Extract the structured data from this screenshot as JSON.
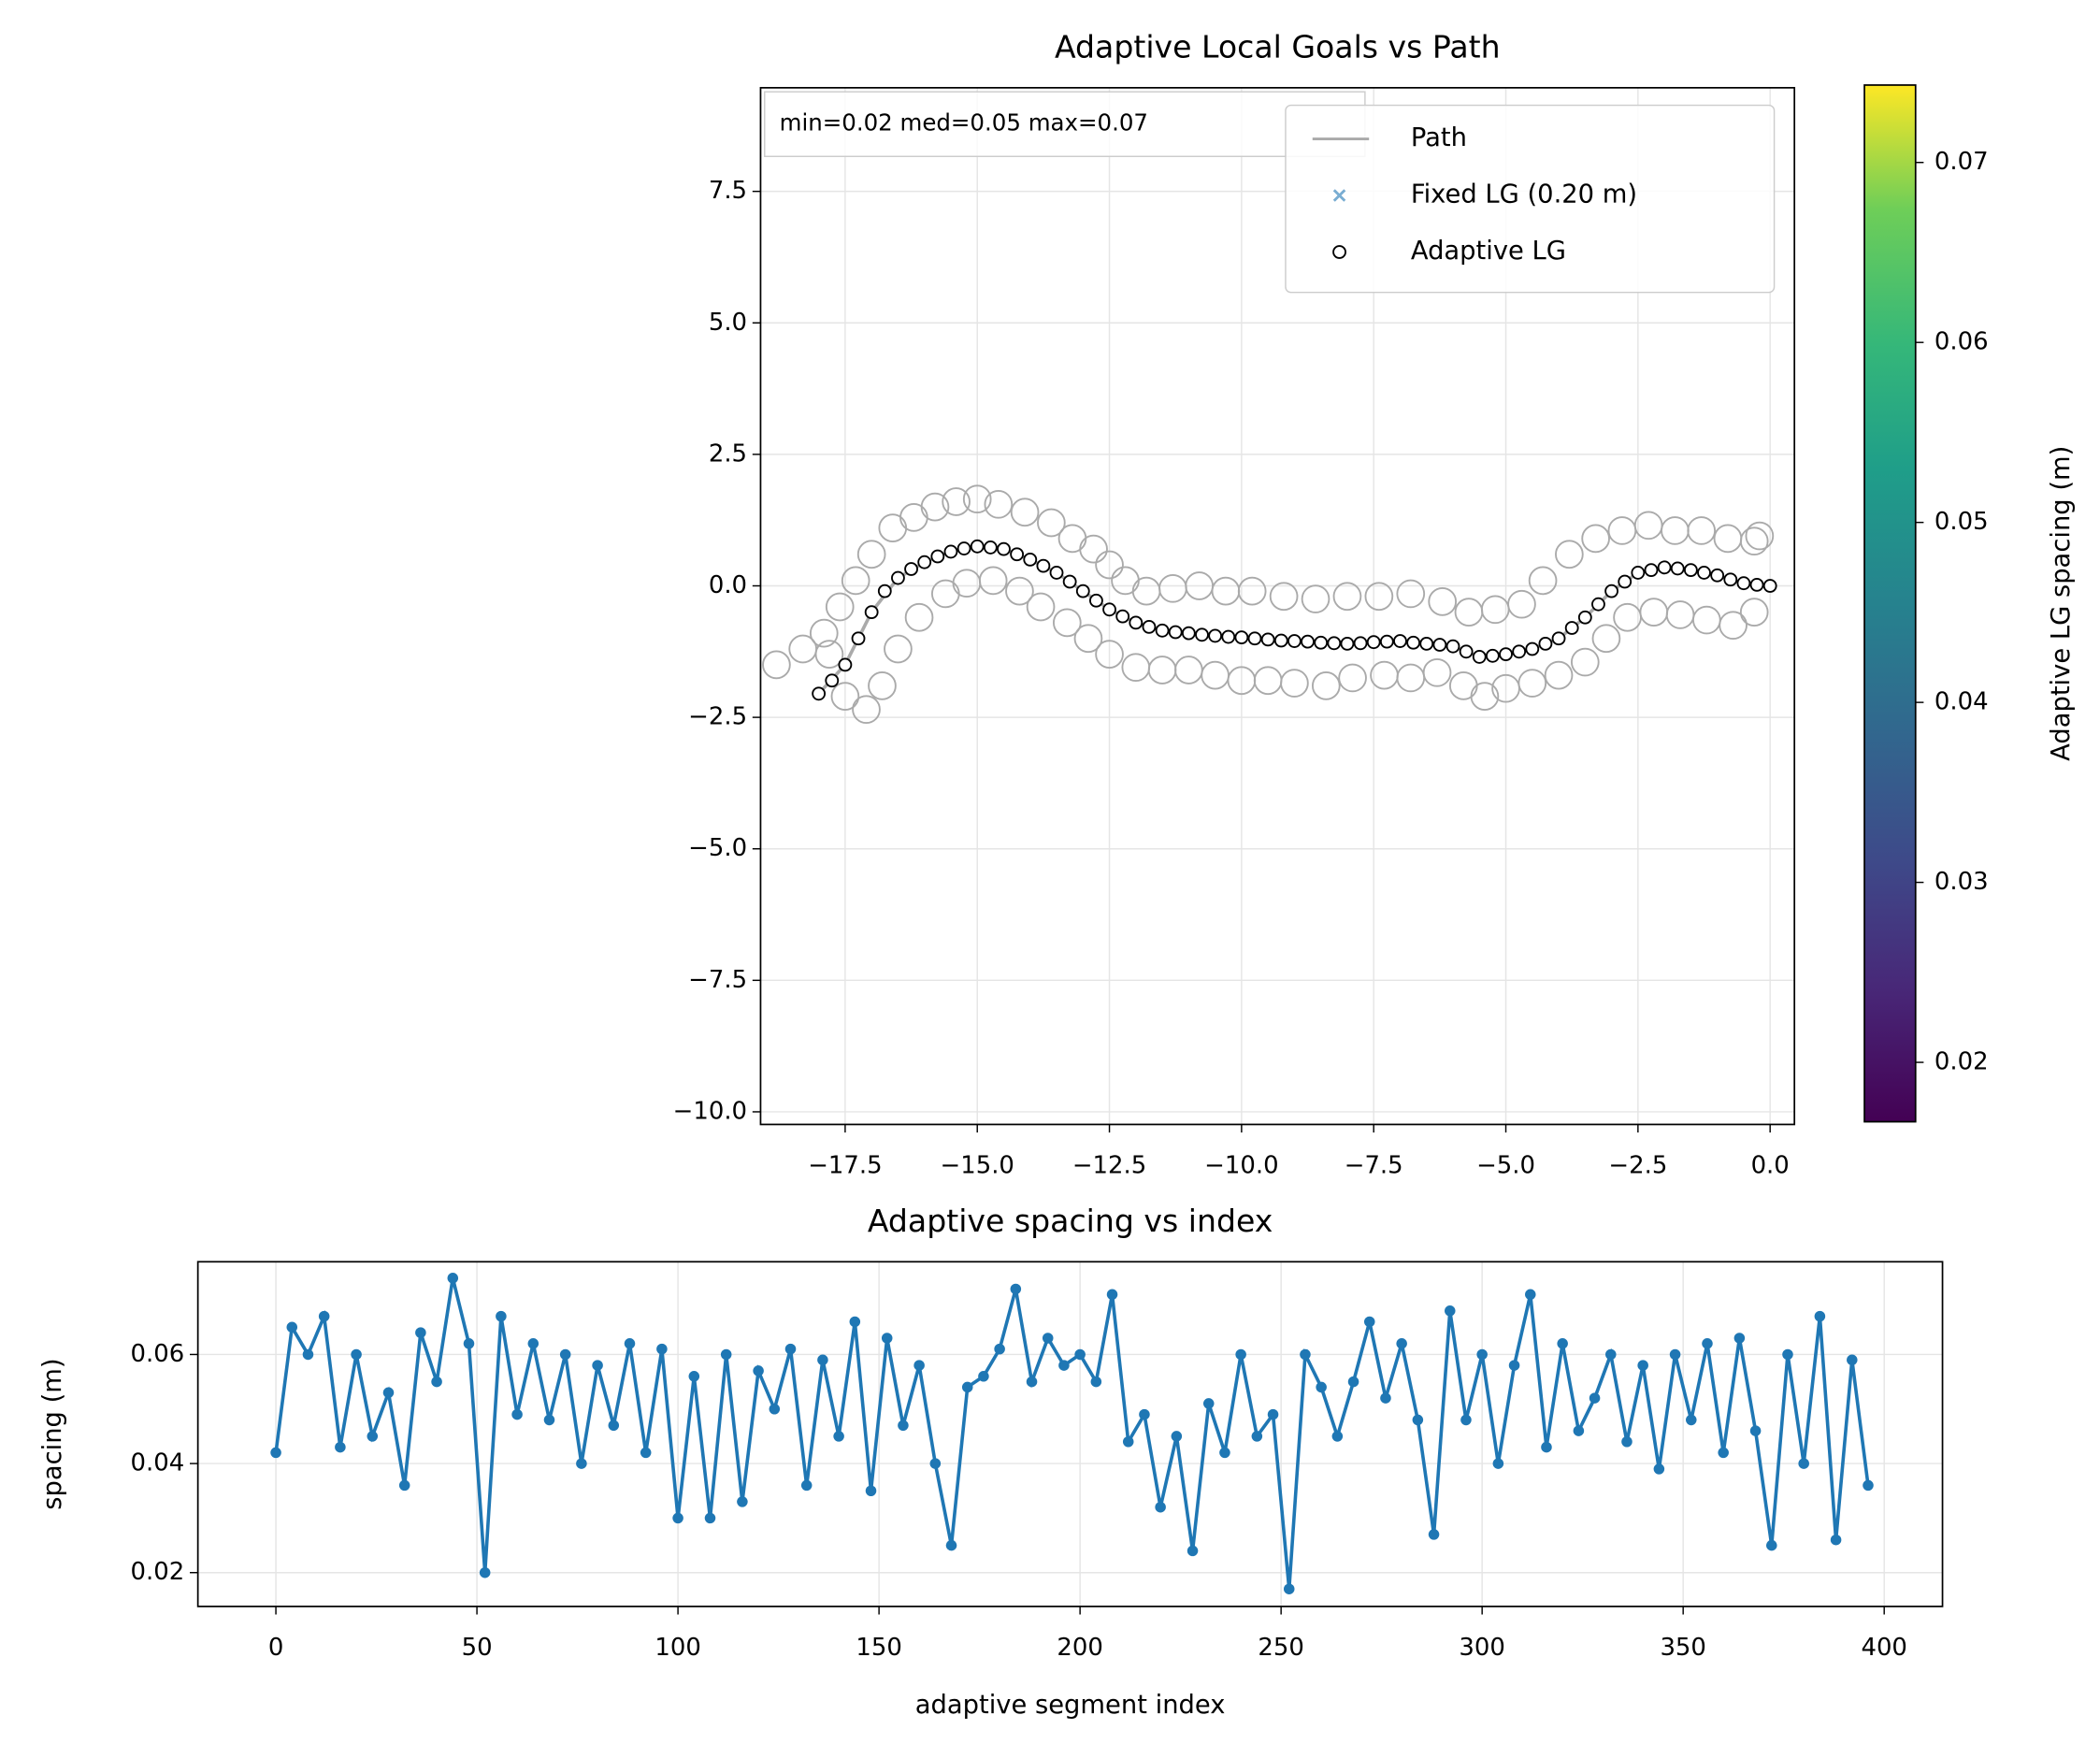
{
  "chart_data": [
    {
      "type": "scatter",
      "title": "Adaptive Local Goals vs Path",
      "annotation": "min=0.02  med=0.05  max=0.07",
      "xlim": [
        -19.1,
        0.46
      ],
      "ylim": [
        -10.24,
        9.47
      ],
      "xticks": [
        {
          "value": -17.5,
          "label": "−17.5"
        },
        {
          "value": -15,
          "label": "−15.0"
        },
        {
          "value": -12.5,
          "label": "−12.5"
        },
        {
          "value": -10,
          "label": "−10.0"
        },
        {
          "value": -7.5,
          "label": "−7.5"
        },
        {
          "value": -5,
          "label": "−5.0"
        },
        {
          "value": -2.5,
          "label": "−2.5"
        },
        {
          "value": 0,
          "label": "0.0"
        }
      ],
      "yticks": [
        {
          "value": -10,
          "label": "−10.0"
        },
        {
          "value": -7.5,
          "label": "−7.5"
        },
        {
          "value": -5,
          "label": "−5.0"
        },
        {
          "value": -2.5,
          "label": "−2.5"
        },
        {
          "value": 0,
          "label": "0.0"
        },
        2.5,
        {
          "value": 5,
          "label": "5.0"
        },
        7.5
      ],
      "grid": true,
      "legend": "upper right",
      "series": [
        {
          "name": "Path",
          "type": "line",
          "color": "#aaaaaa",
          "x": [
            -18,
            -17.5,
            -17,
            -16.5,
            -16,
            -15.5,
            -15,
            -14.5,
            -14,
            -13.5,
            -13,
            -12.5,
            -12,
            -11.5,
            -11,
            -10.5,
            -10,
            -9,
            -8,
            -7,
            -6,
            -5.5,
            -5,
            -4.5,
            -4,
            -3.5,
            -3,
            -2.5,
            -2,
            -1.5,
            -1,
            -0.5,
            0
          ],
          "y": [
            -2.05,
            -1.5,
            -0.5,
            0.15,
            0.45,
            0.65,
            0.75,
            0.7,
            0.5,
            0.25,
            -0.1,
            -0.45,
            -0.7,
            -0.85,
            -0.9,
            -0.95,
            -0.98,
            -1.05,
            -1.1,
            -1.05,
            -1.15,
            -1.35,
            -1.3,
            -1.2,
            -1.0,
            -0.6,
            -0.1,
            0.25,
            0.35,
            0.3,
            0.2,
            0.05,
            0
          ]
        },
        {
          "name": "Fixed LG (0.20 m)",
          "marker": "x",
          "color": "#1f77b4",
          "x": [],
          "y": []
        },
        {
          "marker": "o",
          "color": "#aaaaaa",
          "marker_size": 10,
          "x": [
            -18.8,
            -18.3,
            -17.9,
            -17.6,
            -17.3,
            -17,
            -16.6,
            -16.2,
            -15.8,
            -15.4,
            -15,
            -14.6,
            -14.1,
            -13.6,
            -13.2,
            -12.8,
            -12.5,
            -12.2,
            -11.8,
            -11.3,
            -10.8,
            -10.3,
            -9.8,
            -9.2,
            -8.6,
            -8,
            -7.4,
            -6.8,
            -6.2,
            -5.7,
            -5.2,
            -4.7,
            -4.3,
            -3.8,
            -3.3,
            -2.8,
            -2.3,
            -1.8,
            -1.3,
            -0.8,
            -0.3,
            -0.2,
            -17.8,
            -17.5,
            -17.1,
            -16.8,
            -16.5,
            -16.1,
            -15.6,
            -15.2,
            -14.7,
            -14.2,
            -13.8,
            -13.3,
            -12.9,
            -12.5,
            -12,
            -11.5,
            -11,
            -10.5,
            -10,
            -9.5,
            -9,
            -8.4,
            -7.9,
            -7.3,
            -6.8,
            -6.3,
            -5.8,
            -5.4,
            -5,
            -4.5,
            -4,
            -3.5,
            -3.1,
            -2.7,
            -2.2,
            -1.7,
            -1.2,
            -0.7,
            -0.3
          ],
          "y": [
            -1.5,
            -1.2,
            -0.9,
            -0.4,
            0.1,
            0.6,
            1.1,
            1.3,
            1.5,
            1.6,
            1.65,
            1.55,
            1.4,
            1.2,
            0.9,
            0.7,
            0.4,
            0.1,
            -0.1,
            -0.05,
            0,
            -0.1,
            -0.1,
            -0.2,
            -0.25,
            -0.2,
            -0.2,
            -0.15,
            -0.3,
            -0.5,
            -0.45,
            -0.35,
            0.1,
            0.6,
            0.9,
            1.05,
            1.15,
            1.05,
            1.05,
            0.9,
            0.85,
            0.95,
            -1.3,
            -2.1,
            -2.35,
            -1.9,
            -1.2,
            -0.6,
            -0.15,
            0.05,
            0.1,
            -0.1,
            -0.4,
            -0.7,
            -1.0,
            -1.3,
            -1.55,
            -1.6,
            -1.6,
            -1.7,
            -1.8,
            -1.8,
            -1.85,
            -1.9,
            -1.75,
            -1.7,
            -1.75,
            -1.65,
            -1.9,
            -2.1,
            -1.95,
            -1.85,
            -1.7,
            -1.45,
            -1.0,
            -0.6,
            -0.5,
            -0.55,
            -0.65,
            -0.75,
            -0.5
          ]
        },
        {
          "name": "Adaptive LG",
          "marker": "o",
          "color": "#000000",
          "marker_size": 4.5,
          "x": [
            -18,
            -17.75,
            -17.5,
            -17.25,
            -17,
            -16.75,
            -16.5,
            -16.25,
            -16,
            -15.75,
            -15.5,
            -15.25,
            -15,
            -14.75,
            -14.5,
            -14.25,
            -14,
            -13.75,
            -13.5,
            -13.25,
            -13,
            -12.75,
            -12.5,
            -12.25,
            -12,
            -11.75,
            -11.5,
            -11.25,
            -11,
            -10.75,
            -10.5,
            -10.25,
            -10,
            -9.75,
            -9.5,
            -9.25,
            -9,
            -8.75,
            -8.5,
            -8.25,
            -8,
            -7.75,
            -7.5,
            -7.25,
            -7,
            -6.75,
            -6.5,
            -6.25,
            -6,
            -5.75,
            -5.5,
            -5.25,
            -5,
            -4.75,
            -4.5,
            -4.25,
            -4,
            -3.75,
            -3.5,
            -3.25,
            -3,
            -2.75,
            -2.5,
            -2.25,
            -2,
            -1.75,
            -1.5,
            -1.25,
            -1,
            -0.75,
            -0.5,
            -0.25,
            0
          ],
          "y": [
            -2.05,
            -1.8,
            -1.5,
            -1.0,
            -0.5,
            -0.1,
            0.15,
            0.32,
            0.45,
            0.56,
            0.65,
            0.71,
            0.75,
            0.73,
            0.7,
            0.6,
            0.5,
            0.38,
            0.25,
            0.08,
            -0.1,
            -0.28,
            -0.45,
            -0.58,
            -0.7,
            -0.78,
            -0.85,
            -0.88,
            -0.9,
            -0.93,
            -0.95,
            -0.97,
            -0.98,
            -1.0,
            -1.02,
            -1.04,
            -1.05,
            -1.06,
            -1.08,
            -1.09,
            -1.1,
            -1.09,
            -1.07,
            -1.06,
            -1.05,
            -1.08,
            -1.1,
            -1.12,
            -1.15,
            -1.25,
            -1.35,
            -1.33,
            -1.3,
            -1.25,
            -1.2,
            -1.1,
            -1.0,
            -0.8,
            -0.6,
            -0.35,
            -0.1,
            0.08,
            0.25,
            0.3,
            0.35,
            0.33,
            0.3,
            0.25,
            0.2,
            0.12,
            0.05,
            0.02,
            0
          ]
        }
      ],
      "colorbar": {
        "label": "Adaptive LG spacing (m)",
        "colormap": "viridis",
        "lim": [
          0.0167,
          0.0743
        ],
        "ticks": [
          0.02,
          0.03,
          0.04,
          0.05,
          0.06,
          0.07
        ]
      }
    },
    {
      "type": "line",
      "title": "Adaptive spacing vs index",
      "xlabel": "adaptive segment index",
      "ylabel": "spacing (m)",
      "xlim": [
        -19.4,
        414.5
      ],
      "ylim": [
        0.0138,
        0.077
      ],
      "xticks": [
        0,
        50,
        100,
        150,
        200,
        250,
        300,
        350,
        400
      ],
      "yticks": [
        0.02,
        0.04,
        0.06
      ],
      "grid": true,
      "x": [
        0,
        4,
        8,
        12,
        16,
        20,
        24,
        28,
        32,
        36,
        40,
        44,
        48,
        52,
        56,
        60,
        64,
        68,
        72,
        76,
        80,
        84,
        88,
        92,
        96,
        100,
        104,
        108,
        112,
        116,
        120,
        124,
        128,
        132,
        136,
        140,
        144,
        148,
        152,
        156,
        160,
        164,
        168,
        172,
        176,
        180,
        184,
        188,
        192,
        196,
        200,
        204,
        208,
        212,
        216,
        220,
        224,
        228,
        232,
        236,
        240,
        244,
        248,
        252,
        256,
        260,
        264,
        268,
        272,
        276,
        280,
        284,
        288,
        292,
        296,
        300,
        304,
        308,
        312,
        316,
        320,
        324,
        328,
        332,
        336,
        340,
        344,
        348,
        352,
        356,
        360,
        364,
        368,
        372,
        376,
        380,
        384,
        388,
        392,
        396
      ],
      "series": [
        {
          "color": "#1f77b4",
          "marker": "o",
          "marker_size": 4,
          "values": [
            0.042,
            0.065,
            0.06,
            0.067,
            0.043,
            0.06,
            0.045,
            0.053,
            0.036,
            0.064,
            0.055,
            0.074,
            0.062,
            0.02,
            0.067,
            0.049,
            0.062,
            0.048,
            0.06,
            0.04,
            0.058,
            0.047,
            0.062,
            0.042,
            0.061,
            0.03,
            0.056,
            0.03,
            0.06,
            0.033,
            0.057,
            0.05,
            0.061,
            0.036,
            0.059,
            0.045,
            0.066,
            0.035,
            0.063,
            0.047,
            0.058,
            0.04,
            0.025,
            0.054,
            0.056,
            0.061,
            0.072,
            0.055,
            0.063,
            0.058,
            0.06,
            0.055,
            0.071,
            0.044,
            0.049,
            0.032,
            0.045,
            0.024,
            0.051,
            0.042,
            0.06,
            0.045,
            0.049,
            0.017,
            0.06,
            0.054,
            0.045,
            0.055,
            0.066,
            0.052,
            0.062,
            0.048,
            0.027,
            0.068,
            0.048,
            0.06,
            0.04,
            0.058,
            0.071,
            0.043,
            0.062,
            0.046,
            0.052,
            0.06,
            0.044,
            0.058,
            0.039,
            0.06,
            0.048,
            0.062,
            0.042,
            0.063,
            0.046,
            0.025,
            0.06,
            0.04,
            0.067,
            0.026,
            0.059,
            0.036
          ]
        }
      ]
    }
  ]
}
